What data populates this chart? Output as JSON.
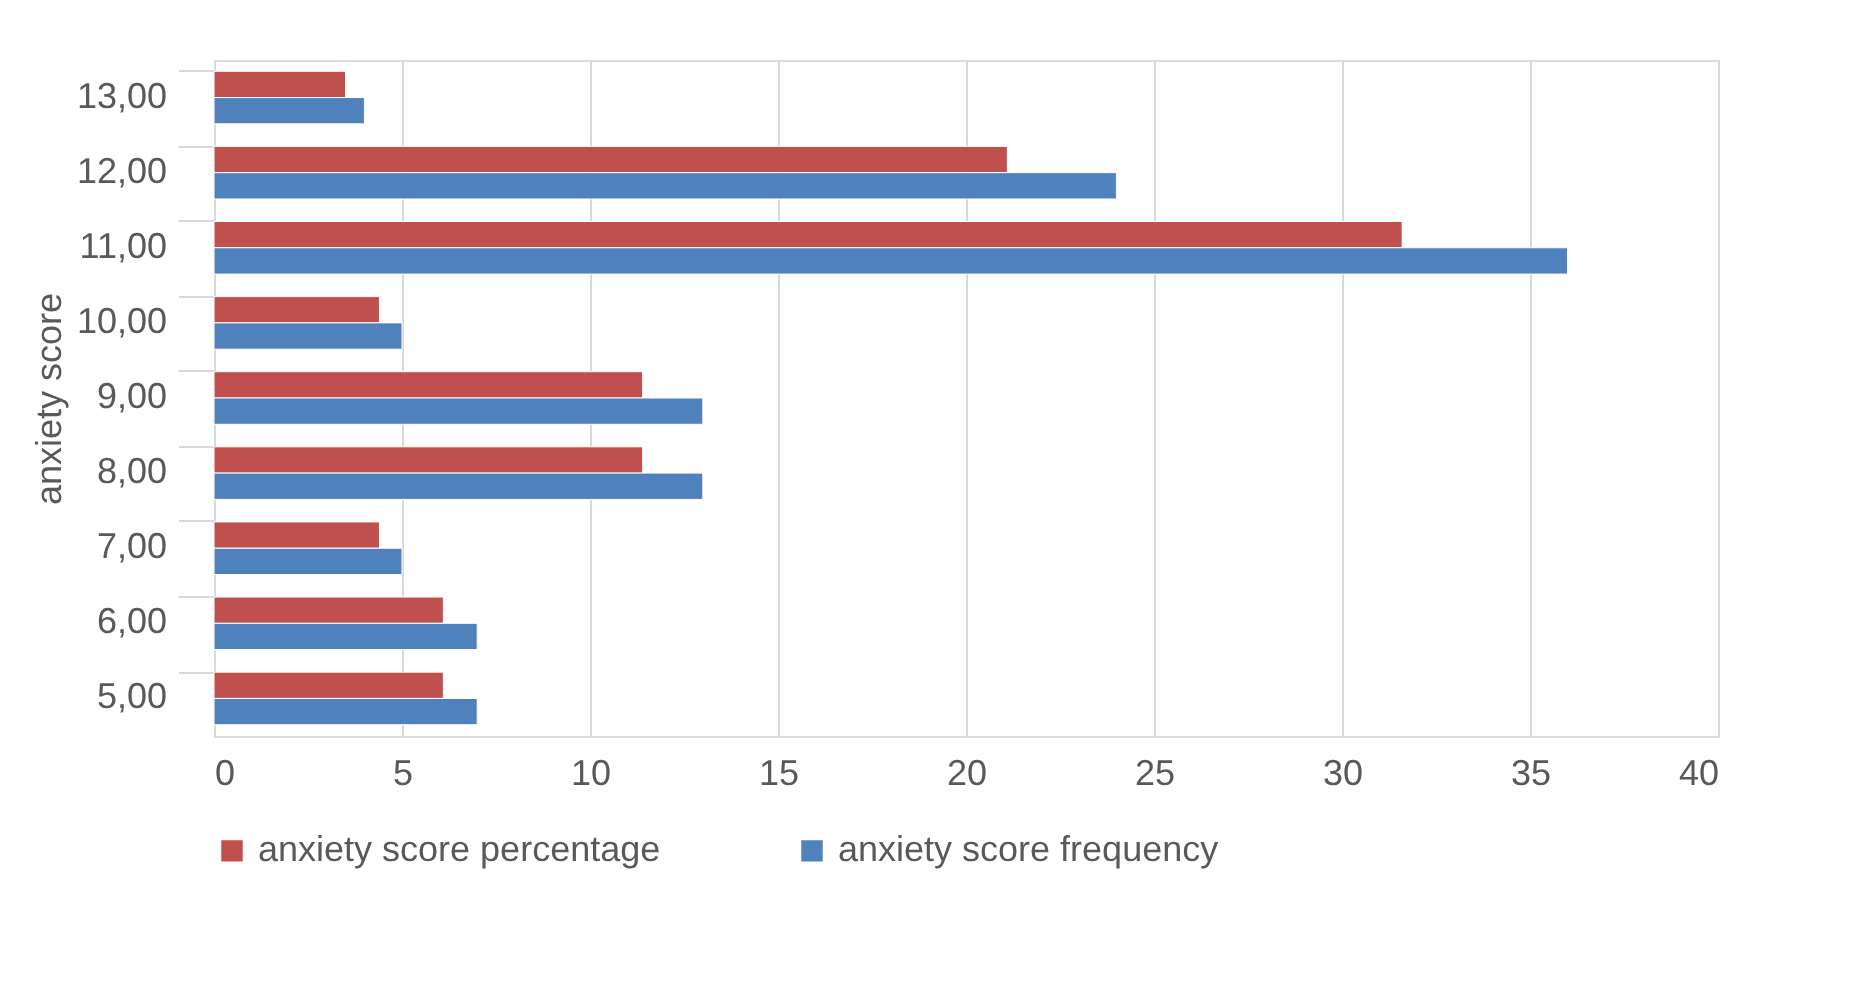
{
  "chart_data": {
    "type": "bar",
    "orientation": "horizontal",
    "ylabel": "anxiety score",
    "categories": [
      null,
      "13,00",
      "12,00",
      "11,00",
      "10,00",
      "9,00",
      "8,00",
      "7,00",
      "6,00",
      "5,00"
    ],
    "series": [
      {
        "name": "anxiety score  percentage",
        "color": "#c0504d",
        "values": [
          null,
          3.5,
          21.1,
          31.6,
          4.4,
          11.4,
          11.4,
          4.4,
          6.1,
          6.1
        ]
      },
      {
        "name": "anxiety score  frequency",
        "color": "#4f81bd",
        "values": [
          null,
          4,
          24,
          36,
          5,
          13,
          13,
          5,
          7,
          7
        ]
      }
    ],
    "xlim": [
      0,
      40
    ],
    "xticks": [
      0,
      5,
      10,
      15,
      20,
      25,
      30,
      35,
      40
    ],
    "grid": "x",
    "legend": "bottom"
  }
}
